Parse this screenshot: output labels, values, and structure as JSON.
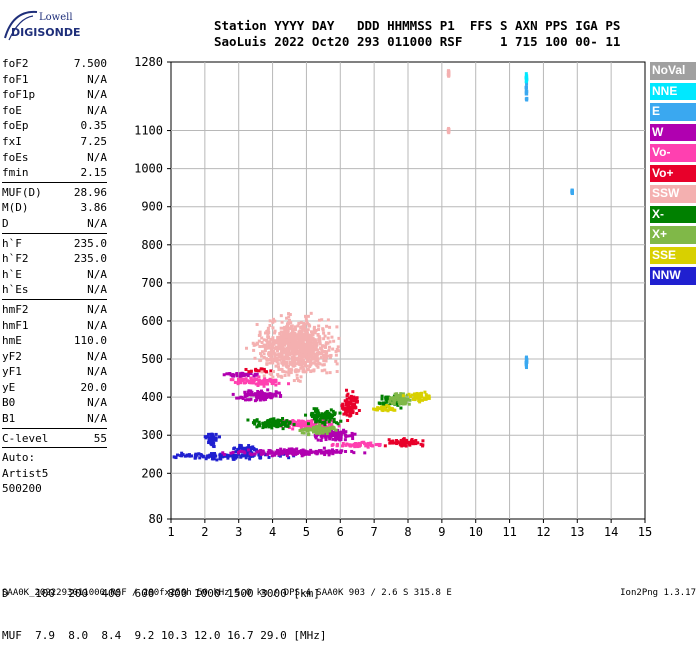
{
  "logo": {
    "line1": "Lowell",
    "line2": "DIGISONDE"
  },
  "header": {
    "line1": "Station YYYY DAY   DDD HHMMSS P1  FFS S AXN PPS IGA PS",
    "line2": "SaoLuis 2022 Oct20 293 011000 RSF     1 715 100 00- 11"
  },
  "params_group1": [
    {
      "k": "foF2",
      "v": "7.500"
    },
    {
      "k": "foF1",
      "v": "N/A"
    },
    {
      "k": "foF1p",
      "v": "N/A"
    },
    {
      "k": "foE",
      "v": "N/A"
    },
    {
      "k": "foEp",
      "v": "0.35"
    },
    {
      "k": "fxI",
      "v": "7.25"
    },
    {
      "k": "foEs",
      "v": "N/A"
    },
    {
      "k": "fmin",
      "v": "2.15"
    }
  ],
  "params_group2": [
    {
      "k": "MUF(D)",
      "v": "28.96"
    },
    {
      "k": "M(D)",
      "v": "3.86"
    },
    {
      "k": "D",
      "v": "N/A"
    }
  ],
  "params_group3": [
    {
      "k": "h`F",
      "v": "235.0"
    },
    {
      "k": "h`F2",
      "v": "235.0"
    },
    {
      "k": "h`E",
      "v": "N/A"
    },
    {
      "k": "h`Es",
      "v": "N/A"
    }
  ],
  "params_group4": [
    {
      "k": "hmF2",
      "v": "N/A"
    },
    {
      "k": "hmF1",
      "v": "N/A"
    },
    {
      "k": "hmE",
      "v": "110.0"
    },
    {
      "k": "yF2",
      "v": "N/A"
    },
    {
      "k": "yF1",
      "v": "N/A"
    },
    {
      "k": "yE",
      "v": "20.0"
    },
    {
      "k": "B0",
      "v": "N/A"
    },
    {
      "k": "B1",
      "v": "N/A"
    }
  ],
  "clevel": {
    "k": "C-level",
    "v": "55"
  },
  "auto": [
    "Auto:",
    "Artist5",
    "500200"
  ],
  "legend": [
    {
      "label": "NoVal",
      "color": "#a0a0a0"
    },
    {
      "label": "NNE",
      "color": "#00e8ff"
    },
    {
      "label": "E",
      "color": "#3aa8f0"
    },
    {
      "label": "W",
      "color": "#b000b0"
    },
    {
      "label": "Vo-",
      "color": "#ff40b0"
    },
    {
      "label": "Vo+",
      "color": "#e8002a"
    },
    {
      "label": "SSW",
      "color": "#f4b0b0"
    },
    {
      "label": "X-",
      "color": "#008000"
    },
    {
      "label": "X+",
      "color": "#80b848"
    },
    {
      "label": "SSE",
      "color": "#d8d000"
    },
    {
      "label": "NNW",
      "color": "#2020d0"
    }
  ],
  "d_table": {
    "d_line": "D    100  200  400  600  800 1000 1500 3000 [km]",
    "muf_line": "MUF  7.9  8.0  8.4  9.2 10.3 12.0 16.7 29.0 [MHz]"
  },
  "footer": "SAA0K_2022293011000.RSF / 280fx256h 50 kHz 5.0 km / DPS-4 SAA0K 903 / 2.6 S 315.8 E",
  "version": "Ion2Png 1.3.17",
  "chart_data": {
    "type": "scatter",
    "title": "",
    "xlabel": "",
    "ylabel": "",
    "xlim": [
      1,
      15
    ],
    "ylim": [
      80,
      1280
    ],
    "x_ticks": [
      1,
      2,
      3,
      4,
      5,
      6,
      7,
      8,
      9,
      10,
      11,
      12,
      13,
      14,
      15
    ],
    "y_ticks": [
      80,
      200,
      300,
      400,
      500,
      600,
      700,
      800,
      900,
      1000,
      1100,
      1280
    ],
    "grid": true,
    "legend_position": "right",
    "series": [
      {
        "name": "NNW",
        "color": "#2020d0",
        "clusters": [
          [
            2.6,
            245,
            2.5,
            12
          ],
          [
            3.2,
            262,
            0.6,
            18
          ],
          [
            2.2,
            290,
            0.3,
            30
          ]
        ]
      },
      {
        "name": "W",
        "color": "#b000b0",
        "clusters": [
          [
            4.6,
            255,
            3.0,
            14
          ],
          [
            3.6,
            405,
            1.0,
            25
          ],
          [
            3.0,
            460,
            0.9,
            10
          ],
          [
            5.8,
            300,
            1.0,
            25
          ]
        ]
      },
      {
        "name": "Vo-",
        "color": "#ff40b0",
        "clusters": [
          [
            3.6,
            440,
            1.2,
            18
          ],
          [
            6.5,
            275,
            1.2,
            12
          ],
          [
            5.0,
            330,
            1.6,
            20
          ]
        ]
      },
      {
        "name": "Vo+",
        "color": "#e8002a",
        "clusters": [
          [
            7.9,
            280,
            0.9,
            18
          ],
          [
            3.6,
            470,
            0.6,
            8
          ],
          [
            6.3,
            380,
            0.4,
            60
          ]
        ]
      },
      {
        "name": "X-",
        "color": "#008000",
        "clusters": [
          [
            4.0,
            330,
            1.2,
            20
          ],
          [
            7.5,
            390,
            0.6,
            25
          ],
          [
            5.5,
            350,
            0.8,
            30
          ]
        ]
      },
      {
        "name": "X+",
        "color": "#80b848",
        "clusters": [
          [
            5.4,
            315,
            0.9,
            20
          ],
          [
            7.8,
            395,
            0.6,
            25
          ]
        ]
      },
      {
        "name": "SSE",
        "color": "#d8d000",
        "clusters": [
          [
            8.3,
            400,
            0.6,
            22
          ],
          [
            7.3,
            370,
            0.6,
            15
          ]
        ]
      },
      {
        "name": "SSW",
        "color": "#f4b0b0",
        "clusters": [
          [
            4.7,
            530,
            1.8,
            120
          ],
          [
            9.2,
            1250,
            0.02,
            15
          ],
          [
            9.2,
            1100,
            0.02,
            10
          ]
        ]
      },
      {
        "name": "E",
        "color": "#3aa8f0",
        "clusters": [
          [
            11.5,
            490,
            0.02,
            35
          ],
          [
            11.5,
            1200,
            0.02,
            60
          ],
          [
            12.85,
            940,
            0.02,
            10
          ]
        ]
      },
      {
        "name": "NNE",
        "color": "#00e8ff",
        "clusters": [
          [
            11.5,
            1240,
            0.02,
            20
          ]
        ]
      }
    ]
  }
}
